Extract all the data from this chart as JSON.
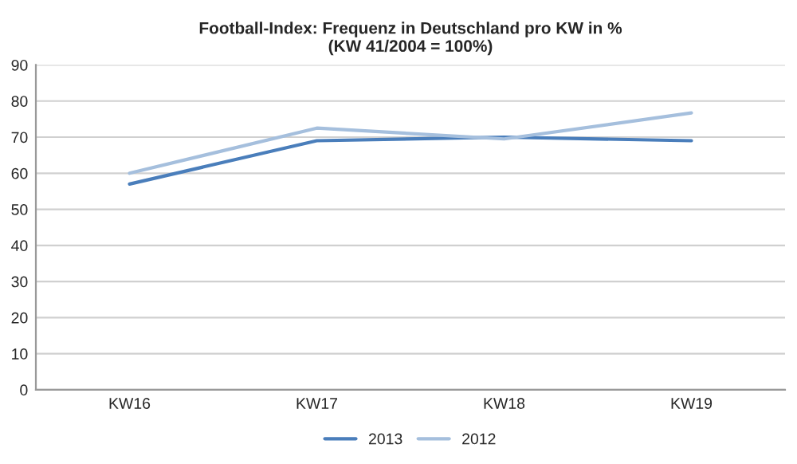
{
  "chart_data": {
    "type": "line",
    "title": "Football-Index: Frequenz in Deutschland pro KW in %\n(KW 41/2004 = 100%)",
    "categories": [
      "KW16",
      "KW17",
      "KW18",
      "KW19"
    ],
    "series": [
      {
        "name": "2013",
        "color": "#4a7ebb",
        "values": [
          57,
          69,
          70,
          69
        ]
      },
      {
        "name": "2012",
        "color": "#a5bfdd",
        "values": [
          60,
          72.5,
          69.5,
          76.7
        ]
      }
    ],
    "ylim": [
      0,
      90
    ],
    "yticks": [
      0,
      10,
      20,
      30,
      40,
      50,
      60,
      70,
      80,
      90
    ],
    "grid": "y",
    "legend": "bottom",
    "marker": "none",
    "line_style": "solid"
  }
}
